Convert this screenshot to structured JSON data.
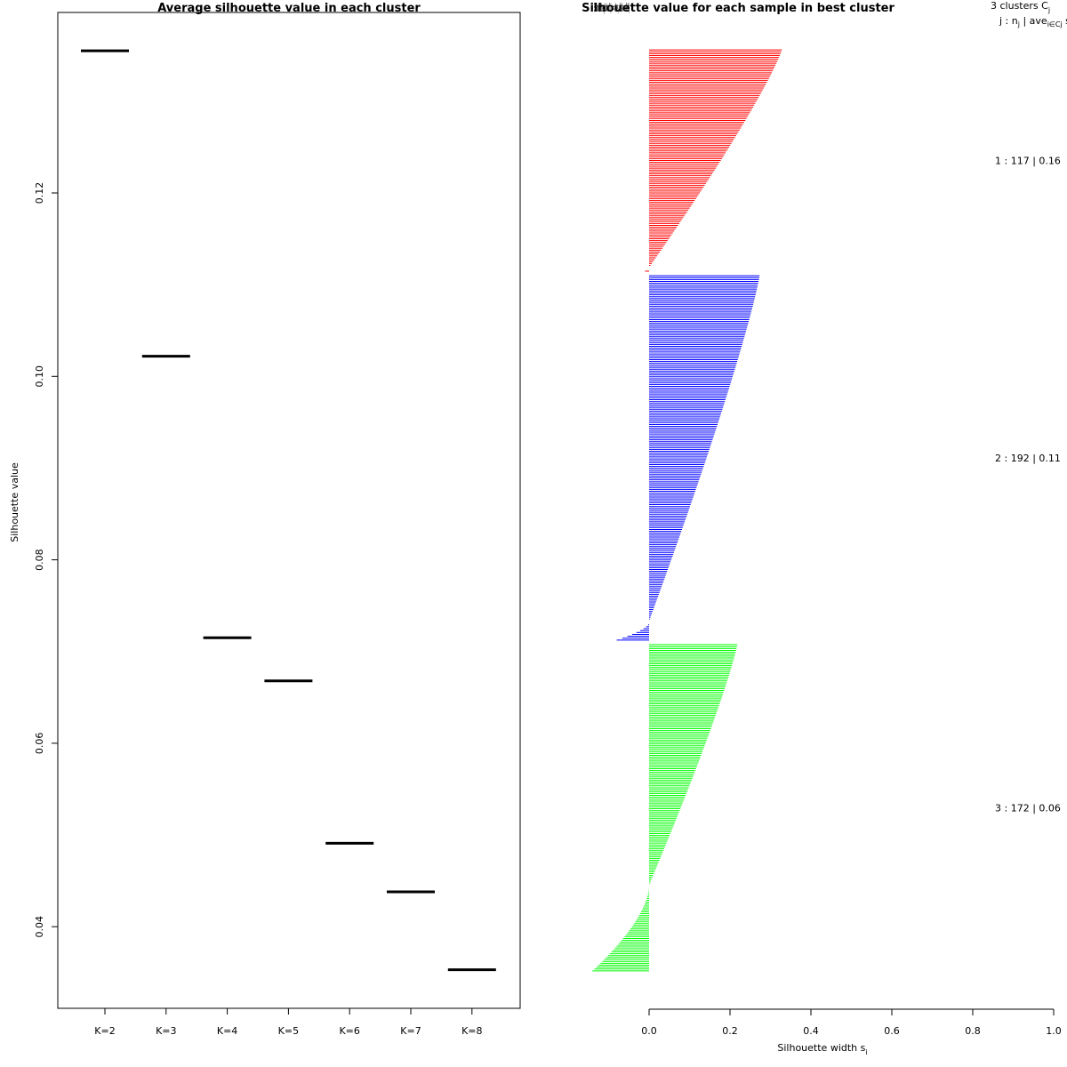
{
  "chart_data": [
    {
      "type": "line",
      "title": "Average silhouette value in each cluster",
      "xlabel": "",
      "ylabel": "Silhouette value",
      "categories": [
        "K=2",
        "K=3",
        "K=4",
        "K=5",
        "K=6",
        "K=7",
        "K=8"
      ],
      "values": [
        0.1355,
        0.1022,
        0.0715,
        0.0668,
        0.0491,
        0.0438,
        0.0353
      ],
      "ylim": [
        0.031,
        0.14
      ],
      "yticks": [
        "0.04",
        "0.06",
        "0.08",
        "0.10",
        "0.12"
      ],
      "ytick_values": [
        0.04,
        0.06,
        0.08,
        0.1,
        0.12
      ]
    },
    {
      "type": "bar",
      "orientation": "horizontal",
      "title": "Silhouette value for each sample in best cluster",
      "overlay_title": "Silhouette plot of (x = clus, dist = dist)",
      "xlabel": "Silhouette width s",
      "xlabel_subscript": "i",
      "xlim": [
        0,
        1
      ],
      "xticks": [
        "0.0",
        "0.2",
        "0.4",
        "0.6",
        "0.8",
        "1.0"
      ],
      "xtick_values": [
        0,
        0.2,
        0.4,
        0.6,
        0.8,
        1.0
      ],
      "header": {
        "line1": "3  clusters  C",
        "line1_sub": "j",
        "line2_a": "j :  n",
        "line2_sub_j": "j",
        "line2_b": " | ave",
        "line2_sub_i": "i∈Cj",
        "line2_c": "  s",
        "line2_sub_s": "i"
      },
      "clusters": [
        {
          "id": 1,
          "n": 117,
          "avg": 0.16,
          "label": "1 :   117  |  0.16",
          "color": "#ff0000",
          "max": 0.325,
          "min": -0.01,
          "neg_count": 2,
          "neg_min": -0.01
        },
        {
          "id": 2,
          "n": 192,
          "avg": 0.11,
          "label": "2 :   192  |  0.11",
          "color": "#0000ff",
          "max": 0.27,
          "min": -0.08,
          "neg_count": 10,
          "neg_min": -0.08
        },
        {
          "id": 3,
          "n": 172,
          "avg": 0.06,
          "label": "3 :   172  |  0.06",
          "color": "#00ff00",
          "max": 0.215,
          "min": -0.14,
          "neg_count": 45,
          "neg_min": -0.14
        }
      ]
    }
  ]
}
